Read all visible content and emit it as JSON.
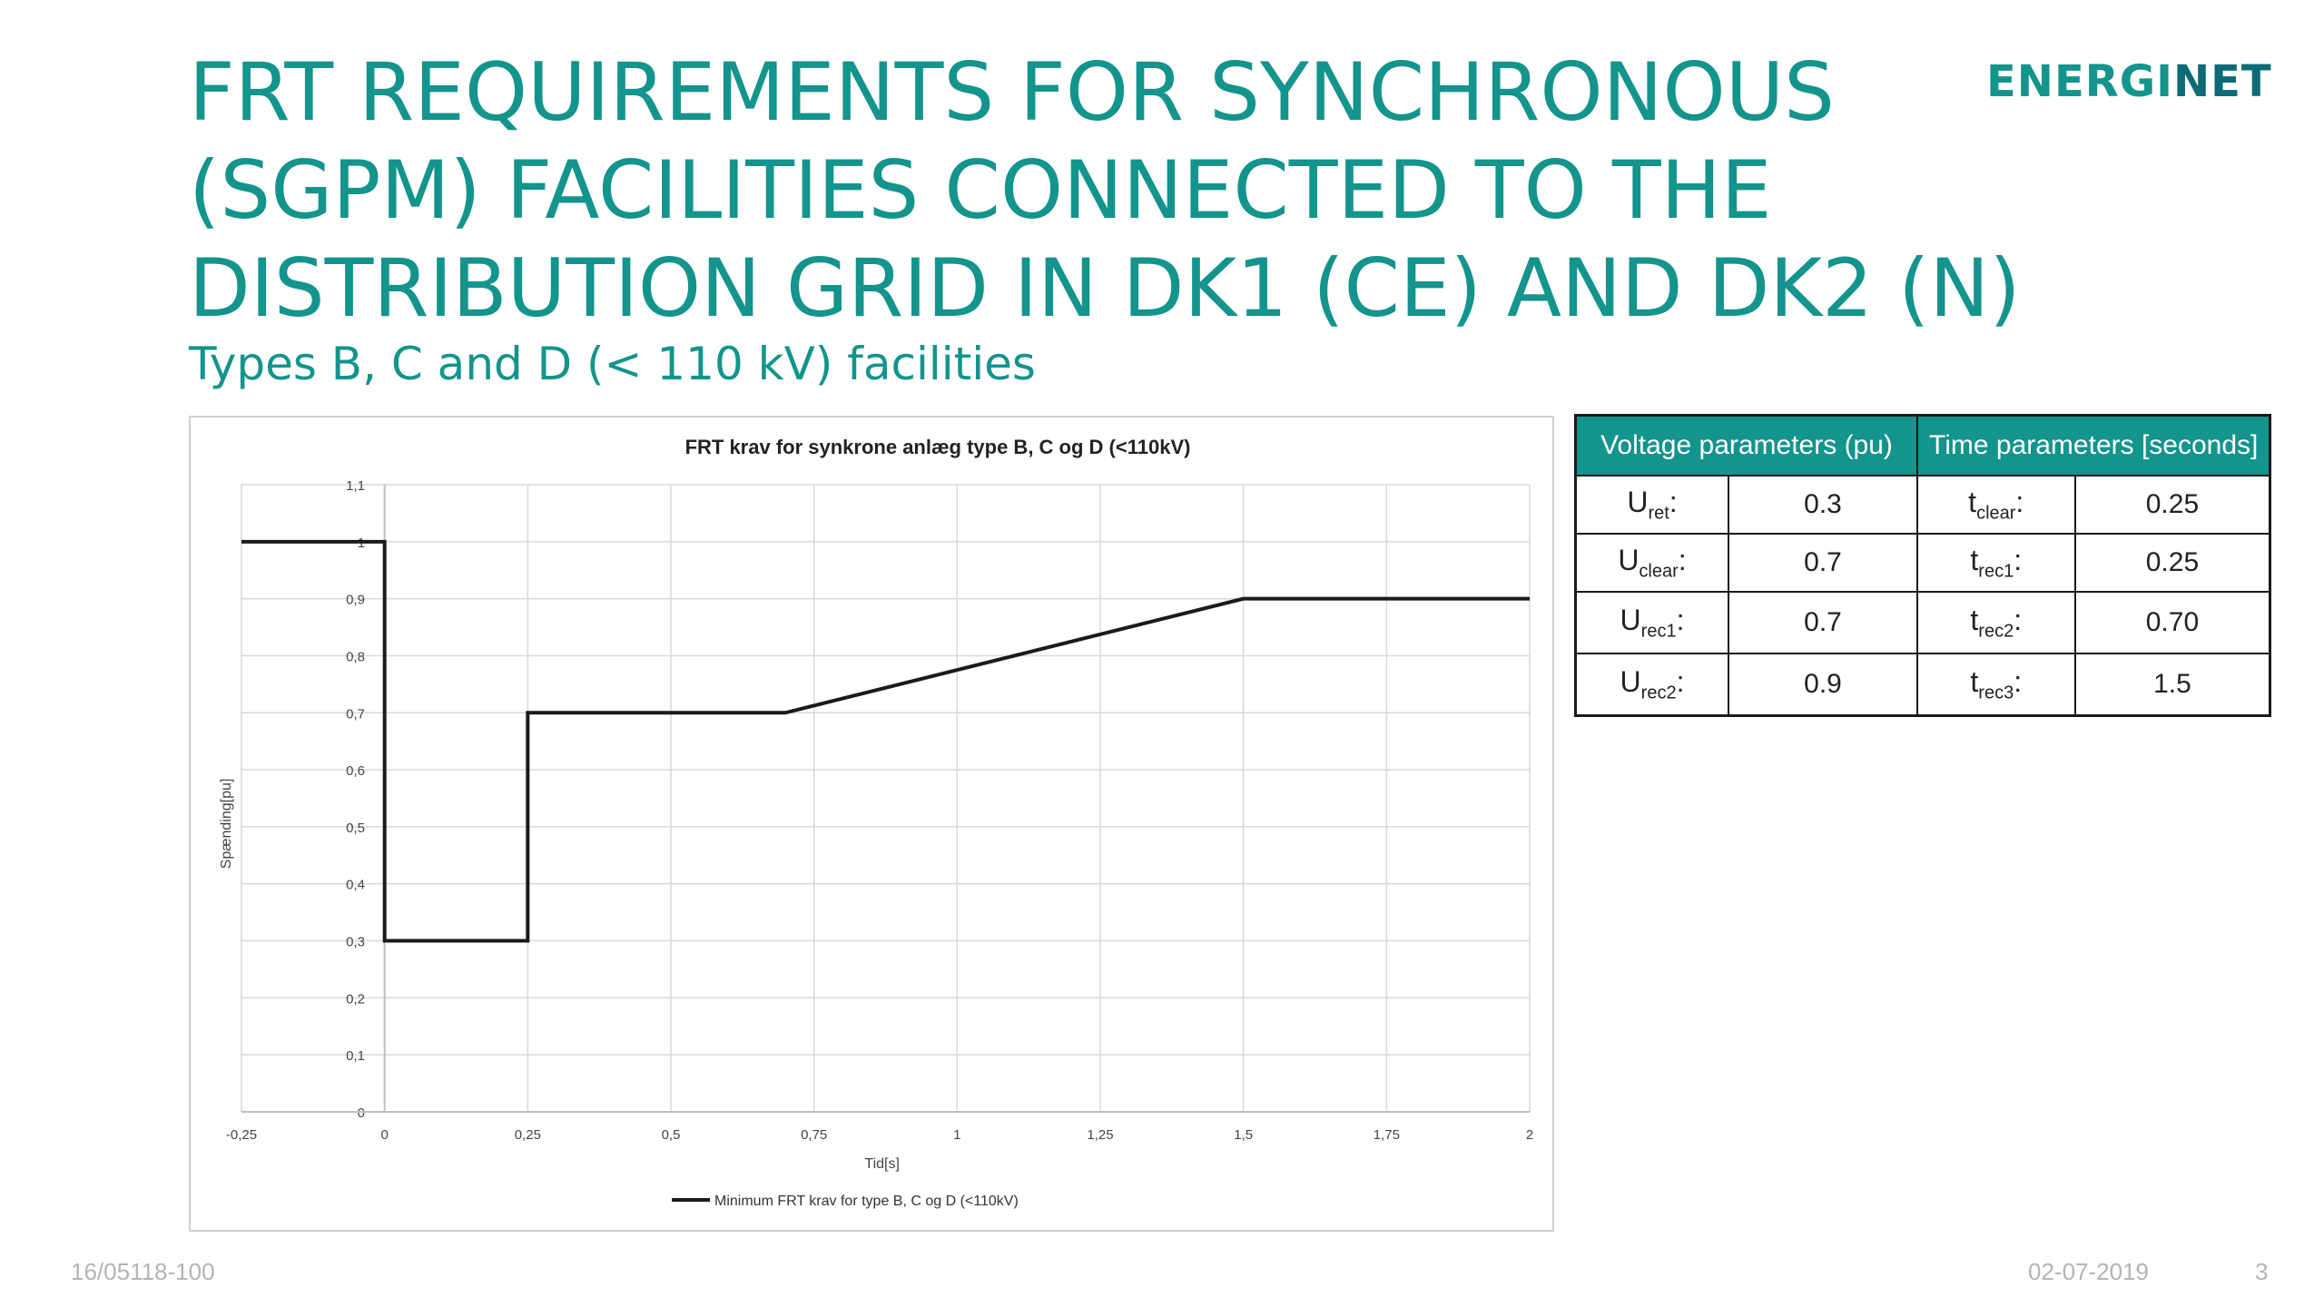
{
  "slide": {
    "title_lines": [
      "FRT REQUIREMENTS FOR SYNCHRONOUS",
      "(SGPM) FACILITIES CONNECTED TO THE",
      "DISTRIBUTION GRID IN DK1 (CE) AND DK2 (N)"
    ],
    "subtitle": "Types B, C and D (< 110 kV) facilities",
    "logo": {
      "part1": "ENERGI",
      "part2": "NET"
    },
    "footer": {
      "doc_id": "16/05118-100",
      "date": "02-07-2019",
      "page": "3"
    }
  },
  "table": {
    "headers": [
      "Voltage parameters (pu)",
      "Time parameters [seconds]"
    ],
    "rows": [
      {
        "u_sym": "U",
        "u_sub": "ret",
        "u_val": "0.3",
        "t_sym": "t",
        "t_sub": "clear",
        "t_val": "0.25"
      },
      {
        "u_sym": "U",
        "u_sub": "clear",
        "u_val": "0.7",
        "t_sym": "t",
        "t_sub": "rec1",
        "t_val": "0.25"
      },
      {
        "u_sym": "U",
        "u_sub": "rec1",
        "u_val": "0.7",
        "t_sym": "t",
        "t_sub": "rec2",
        "t_val": "0.70"
      },
      {
        "u_sym": "U",
        "u_sub": "rec2",
        "u_val": "0.9",
        "t_sym": "t",
        "t_sub": "rec3",
        "t_val": "1.5"
      }
    ],
    "colon": ":"
  },
  "chart_data": {
    "type": "line",
    "title": "FRT krav for synkrone anlæg type B, C og D (<110kV)",
    "xlabel": "Tid[s]",
    "ylabel": "Spænding[pu]",
    "xlim": [
      -0.25,
      2
    ],
    "ylim": [
      0,
      1.1
    ],
    "x_ticks": [
      -0.25,
      0,
      0.25,
      0.5,
      0.75,
      1,
      1.25,
      1.5,
      1.75,
      2
    ],
    "x_tick_labels": [
      "-0,25",
      "0",
      "0,25",
      "0,5",
      "0,75",
      "1",
      "1,25",
      "1,5",
      "1,75",
      "2"
    ],
    "y_ticks": [
      0,
      0.1,
      0.2,
      0.3,
      0.4,
      0.5,
      0.6,
      0.7,
      0.8,
      0.9,
      1,
      1.1
    ],
    "y_tick_labels": [
      "0",
      "0,1",
      "0,2",
      "0,3",
      "0,4",
      "0,5",
      "0,6",
      "0,7",
      "0,8",
      "0,9",
      "1",
      "1,1"
    ],
    "grid": true,
    "legend_position": "bottom",
    "series": [
      {
        "name": "Minimum FRT krav for type B, C og D (<110kV)",
        "color": "#1a1a1a",
        "x": [
          -0.25,
          0,
          0,
          0.25,
          0.25,
          0.7,
          1.5,
          2
        ],
        "y": [
          1,
          1,
          0.3,
          0.3,
          0.7,
          0.7,
          0.9,
          0.9
        ]
      }
    ]
  }
}
